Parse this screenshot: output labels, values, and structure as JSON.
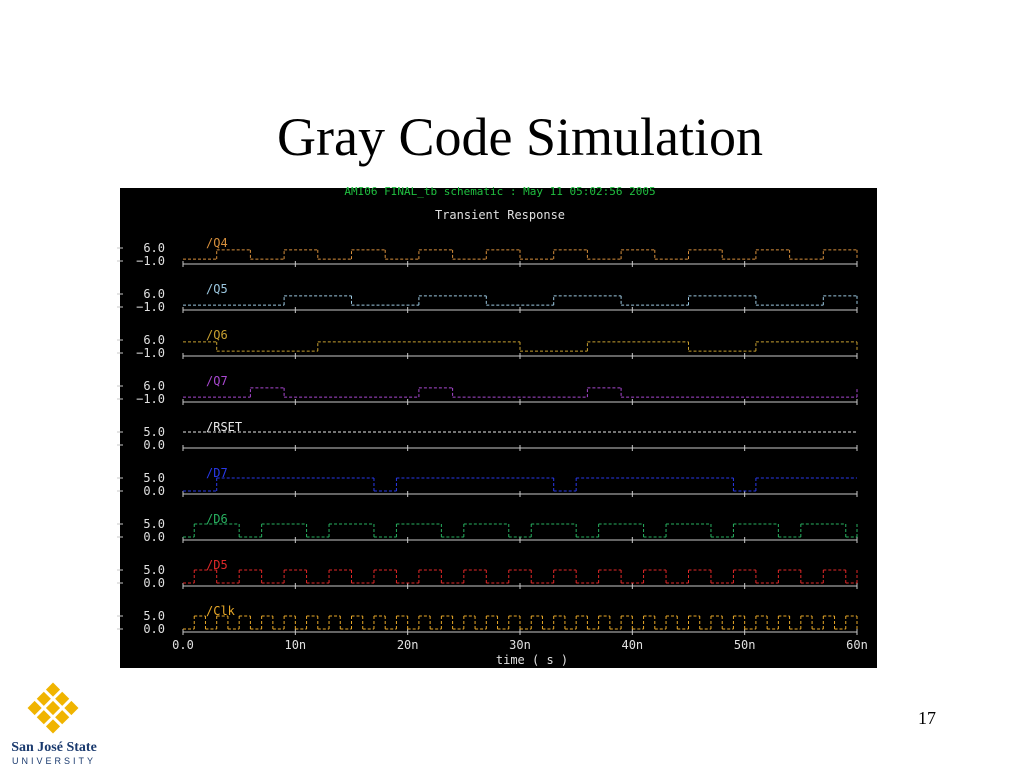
{
  "title": "Gray Code Simulation",
  "page_number": "17",
  "logo": {
    "name": "San José State",
    "subtitle": "UNIVERSITY"
  },
  "plot_header": "AMI06 FINAL_tb schematic : May 11 05:02:56 2005",
  "plot_title": "Transient Response",
  "chart_data": [
    {
      "type": "line",
      "step": true,
      "xlim": [
        0,
        60
      ],
      "ylim": [
        -1,
        6
      ],
      "yticks": [
        {
          "value": 6,
          "label": "6.0"
        },
        {
          "value": -1,
          "label": "−1.0"
        }
      ],
      "series": [
        {
          "name": "/Q4",
          "color": "#d8903c",
          "x": [
            0,
            3,
            6,
            9,
            12,
            15,
            18,
            21,
            24,
            27,
            30,
            33,
            36,
            39,
            42,
            45,
            48,
            51,
            54,
            57,
            60
          ],
          "values": [
            0,
            5,
            0,
            5,
            0,
            5,
            0,
            5,
            0,
            5,
            0,
            5,
            0,
            5,
            0,
            5,
            0,
            5,
            0,
            5,
            0
          ]
        }
      ]
    },
    {
      "type": "line",
      "step": true,
      "xlim": [
        0,
        60
      ],
      "ylim": [
        -1,
        6
      ],
      "yticks": [
        {
          "value": 6,
          "label": "6.0"
        },
        {
          "value": -1,
          "label": "−1.0"
        }
      ],
      "series": [
        {
          "name": "/Q5",
          "color": "#9cc8e0",
          "x": [
            0,
            9,
            15,
            21,
            27,
            33,
            39,
            45,
            51,
            57,
            60
          ],
          "values": [
            0,
            5,
            0,
            5,
            0,
            5,
            0,
            5,
            0,
            5,
            0
          ]
        }
      ]
    },
    {
      "type": "line",
      "step": true,
      "xlim": [
        0,
        60
      ],
      "ylim": [
        -1,
        6
      ],
      "yticks": [
        {
          "value": 6,
          "label": "6.0"
        },
        {
          "value": -1,
          "label": "−1.0"
        }
      ],
      "series": [
        {
          "name": "/Q6",
          "color": "#c8a030",
          "x": [
            0,
            3,
            12,
            30,
            36,
            45,
            51,
            60
          ],
          "values": [
            5,
            0,
            5,
            0,
            5,
            0,
            5,
            0
          ]
        }
      ]
    },
    {
      "type": "line",
      "step": true,
      "xlim": [
        0,
        60
      ],
      "ylim": [
        -1,
        6
      ],
      "yticks": [
        {
          "value": 6,
          "label": "6.0"
        },
        {
          "value": -1,
          "label": "−1.0"
        }
      ],
      "series": [
        {
          "name": "/Q7",
          "color": "#a848d0",
          "x": [
            0,
            6,
            9,
            21,
            24,
            36,
            39,
            60
          ],
          "values": [
            0,
            5,
            0,
            5,
            0,
            5,
            0,
            5
          ]
        }
      ]
    },
    {
      "type": "line",
      "step": true,
      "xlim": [
        0,
        60
      ],
      "ylim": [
        0,
        5
      ],
      "yticks": [
        {
          "value": 5,
          "label": "5.0"
        },
        {
          "value": 0,
          "label": "0.0"
        }
      ],
      "series": [
        {
          "name": "/RSET",
          "color": "#e8e8e8",
          "x": [
            0,
            60
          ],
          "values": [
            5,
            5
          ]
        }
      ]
    },
    {
      "type": "line",
      "step": true,
      "xlim": [
        0,
        60
      ],
      "ylim": [
        0,
        5
      ],
      "yticks": [
        {
          "value": 5,
          "label": "5.0"
        },
        {
          "value": 0,
          "label": "0.0"
        }
      ],
      "series": [
        {
          "name": "/D7",
          "color": "#2838e8",
          "x": [
            0,
            3,
            17,
            19,
            33,
            35,
            49,
            51,
            60
          ],
          "values": [
            0,
            5,
            0,
            5,
            0,
            5,
            0,
            5,
            5
          ]
        }
      ]
    },
    {
      "type": "line",
      "step": true,
      "xlim": [
        0,
        60
      ],
      "ylim": [
        0,
        5
      ],
      "yticks": [
        {
          "value": 5,
          "label": "5.0"
        },
        {
          "value": 0,
          "label": "0.0"
        }
      ],
      "series": [
        {
          "name": "/D6",
          "color": "#28b060",
          "x": [
            0,
            1,
            5,
            7,
            11,
            13,
            17,
            19,
            23,
            25,
            29,
            31,
            35,
            37,
            41,
            43,
            47,
            49,
            53,
            55,
            59,
            60
          ],
          "values": [
            0,
            5,
            0,
            5,
            0,
            5,
            0,
            5,
            0,
            5,
            0,
            5,
            0,
            5,
            0,
            5,
            0,
            5,
            0,
            5,
            0,
            5
          ]
        }
      ]
    },
    {
      "type": "line",
      "step": true,
      "xlim": [
        0,
        60
      ],
      "ylim": [
        0,
        5
      ],
      "yticks": [
        {
          "value": 5,
          "label": "5.0"
        },
        {
          "value": 0,
          "label": "0.0"
        }
      ],
      "series": [
        {
          "name": "/D5",
          "color": "#e02828",
          "x": [
            0,
            1,
            3,
            5,
            7,
            9,
            11,
            13,
            15,
            17,
            19,
            21,
            23,
            25,
            27,
            29,
            31,
            33,
            35,
            37,
            39,
            41,
            43,
            45,
            47,
            49,
            51,
            53,
            55,
            57,
            59,
            60
          ],
          "values": [
            0,
            5,
            0,
            5,
            0,
            5,
            0,
            5,
            0,
            5,
            0,
            5,
            0,
            5,
            0,
            5,
            0,
            5,
            0,
            5,
            0,
            5,
            0,
            5,
            0,
            5,
            0,
            5,
            0,
            5,
            0,
            5
          ]
        }
      ]
    },
    {
      "type": "line",
      "step": true,
      "xlim": [
        0,
        60
      ],
      "ylim": [
        0,
        5
      ],
      "yticks": [
        {
          "value": 5,
          "label": "5.0"
        },
        {
          "value": 0,
          "label": "0.0"
        }
      ],
      "xlabel": "time ( s )",
      "xticks": [
        {
          "value": 0,
          "label": "0.0"
        },
        {
          "value": 10,
          "label": "10n"
        },
        {
          "value": 20,
          "label": "20n"
        },
        {
          "value": 30,
          "label": "30n"
        },
        {
          "value": 40,
          "label": "40n"
        },
        {
          "value": 50,
          "label": "50n"
        },
        {
          "value": 60,
          "label": "60n"
        }
      ],
      "series": [
        {
          "name": "/Clk",
          "color": "#e8a828",
          "x": [
            0,
            1,
            2,
            3,
            4,
            5,
            6,
            7,
            8,
            9,
            10,
            11,
            12,
            13,
            14,
            15,
            16,
            17,
            18,
            19,
            20,
            21,
            22,
            23,
            24,
            25,
            26,
            27,
            28,
            29,
            30,
            31,
            32,
            33,
            34,
            35,
            36,
            37,
            38,
            39,
            40,
            41,
            42,
            43,
            44,
            45,
            46,
            47,
            48,
            49,
            50,
            51,
            52,
            53,
            54,
            55,
            56,
            57,
            58,
            59,
            60
          ],
          "values": [
            0,
            5,
            0,
            5,
            0,
            5,
            0,
            5,
            0,
            5,
            0,
            5,
            0,
            5,
            0,
            5,
            0,
            5,
            0,
            5,
            0,
            5,
            0,
            5,
            0,
            5,
            0,
            5,
            0,
            5,
            0,
            5,
            0,
            5,
            0,
            5,
            0,
            5,
            0,
            5,
            0,
            5,
            0,
            5,
            0,
            5,
            0,
            5,
            0,
            5,
            0,
            5,
            0,
            5,
            0,
            5,
            0,
            5,
            0,
            5,
            0
          ]
        }
      ]
    }
  ]
}
